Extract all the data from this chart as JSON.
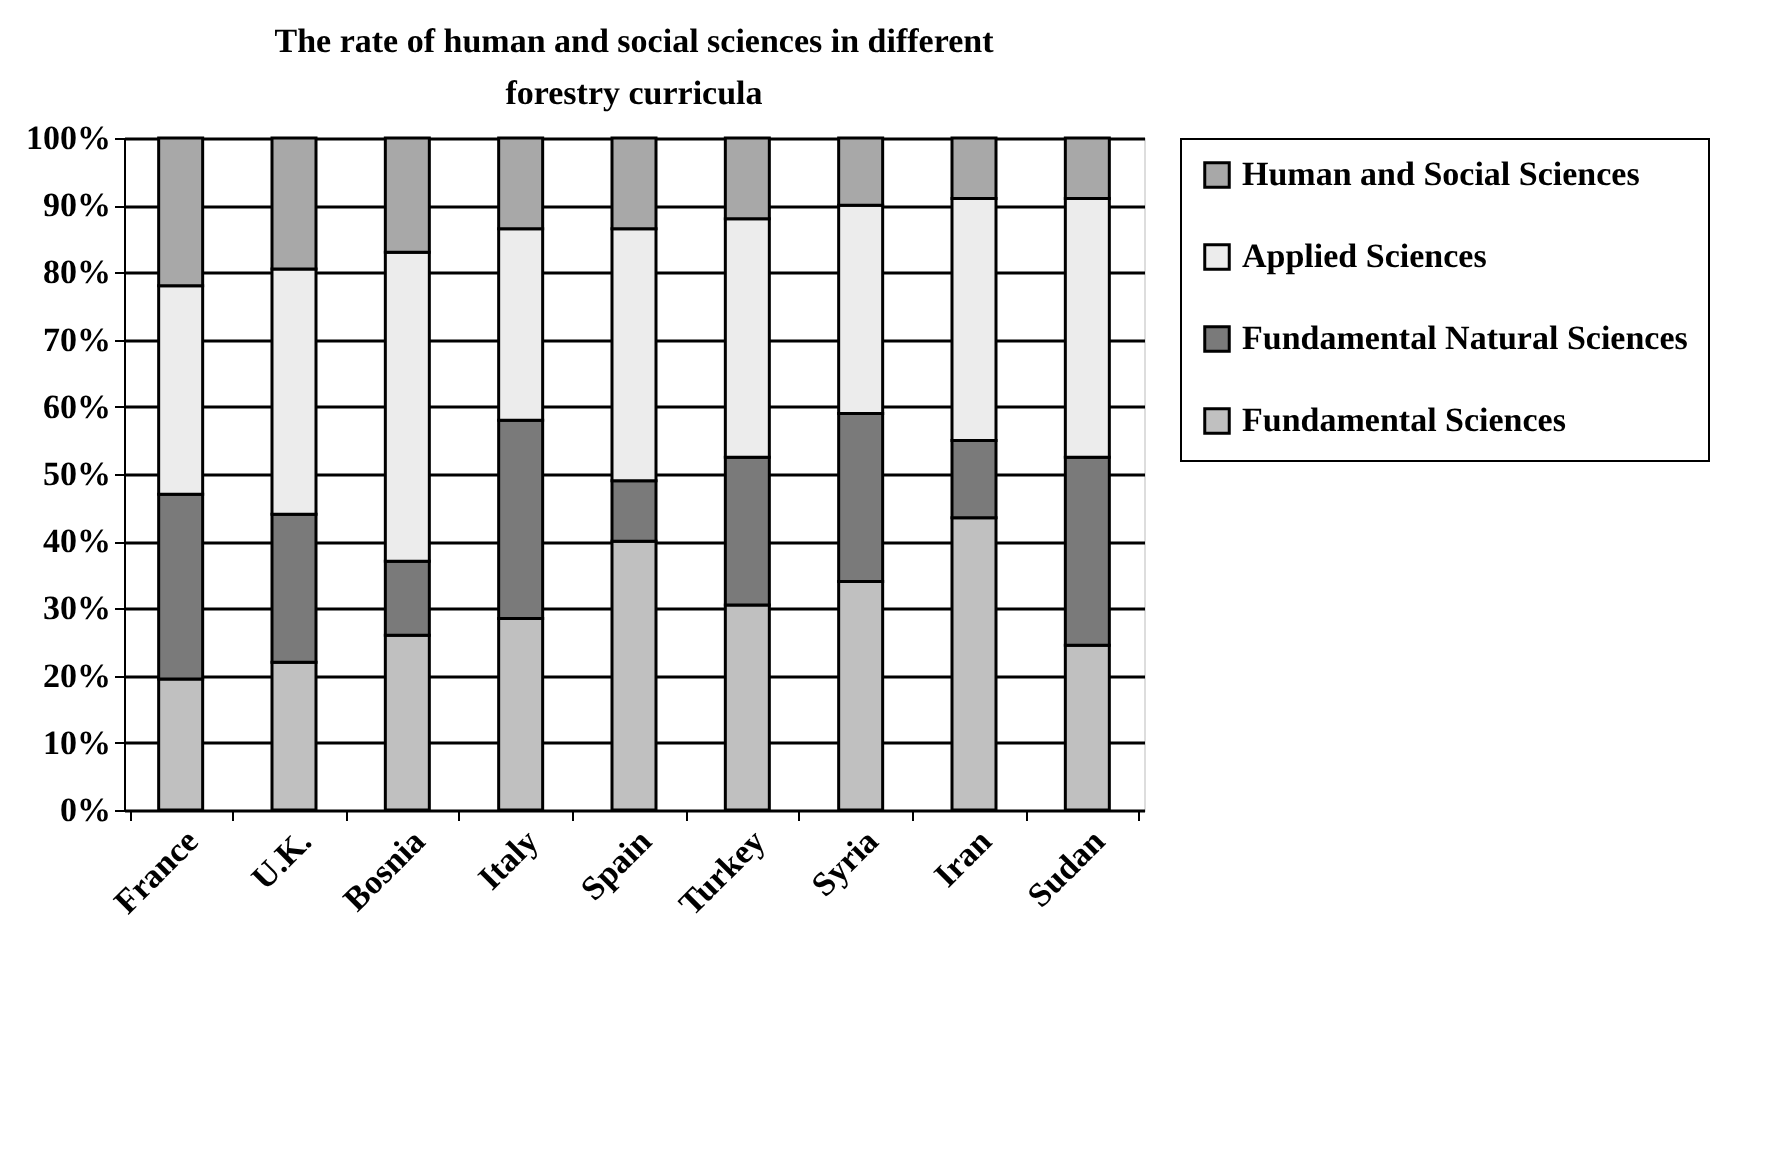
{
  "chart_data": {
    "type": "bar",
    "title": "The rate of human and social sciences in different forestry curricula",
    "categories": [
      "France",
      "U.K.",
      "Bosnia",
      "Italy",
      "Spain",
      "Turkey",
      "Syria",
      "Iran",
      "Sudan"
    ],
    "stacked": true,
    "series": [
      {
        "name": "Fundamental Sciences",
        "color": "#c0c0c0",
        "values": [
          19.5,
          22,
          26,
          28.5,
          40,
          30.5,
          34,
          43.5,
          24.5
        ]
      },
      {
        "name": "Fundamental Natural Sciences",
        "color": "#7a7a7a",
        "values": [
          27.5,
          22,
          11,
          29.5,
          9,
          22,
          25,
          11.5,
          28
        ]
      },
      {
        "name": "Applied Sciences",
        "color": "#ececec",
        "values": [
          31,
          36.5,
          46,
          28.5,
          37.5,
          35.5,
          31,
          36,
          38.5
        ]
      },
      {
        "name": "Human and Social Sciences",
        "color": "#a8a8a8",
        "values": [
          22,
          19.5,
          17,
          13.5,
          13.5,
          12,
          10,
          9,
          9
        ]
      }
    ],
    "ylim": [
      0,
      100
    ],
    "yticks": [
      {
        "value": 0,
        "label": "0%"
      },
      {
        "value": 10,
        "label": "10%"
      },
      {
        "value": 20,
        "label": "20%"
      },
      {
        "value": 30,
        "label": "30%"
      },
      {
        "value": 40,
        "label": "40%"
      },
      {
        "value": 50,
        "label": "50%"
      },
      {
        "value": 60,
        "label": "60%"
      },
      {
        "value": 70,
        "label": "70%"
      },
      {
        "value": 80,
        "label": "80%"
      },
      {
        "value": 90,
        "label": "90%"
      },
      {
        "value": 100,
        "label": "100%"
      }
    ],
    "grid": "y",
    "legend": "right"
  }
}
